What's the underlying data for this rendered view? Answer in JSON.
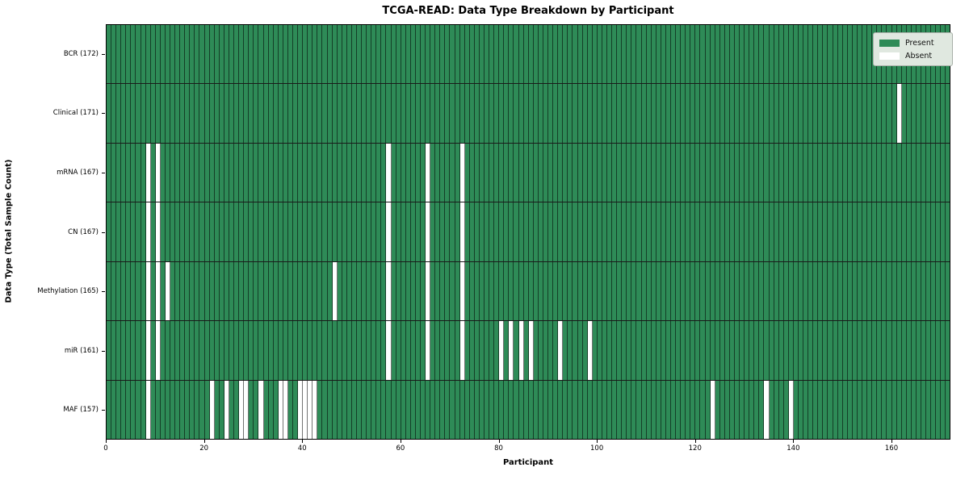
{
  "title": "TCGA-READ: Data Type Breakdown by Participant",
  "xlabel": "Participant",
  "ylabel": "Data Type (Total Sample Count)",
  "legend": [
    {
      "label": "Present",
      "color": "#2e8b57"
    },
    {
      "label": "Absent",
      "color": "#ffffff"
    }
  ],
  "colors": {
    "present": "#2e8b57",
    "absent": "#ffffff",
    "cell_gridline": "rgba(0,0,0,0.55)",
    "row_separator": "#1a1a1a",
    "spine": "#000000"
  },
  "chart_data": {
    "type": "heatmap",
    "title": "TCGA-READ: Data Type Breakdown by Participant",
    "xlabel": "Participant",
    "ylabel": "Data Type (Total Sample Count)",
    "n_participants": 172,
    "x_ticks": [
      0,
      20,
      40,
      60,
      80,
      100,
      120,
      140,
      160
    ],
    "xlim": [
      0,
      172
    ],
    "grid": true,
    "legend_position": "upper right",
    "value_legend": {
      "present": 1,
      "absent": 0
    },
    "rows": [
      {
        "label": "BCR (172)",
        "data_type": "BCR",
        "total_sample_count": 172,
        "absent_participants": []
      },
      {
        "label": "Clinical (171)",
        "data_type": "Clinical",
        "total_sample_count": 171,
        "absent_participants": [
          161
        ]
      },
      {
        "label": "mRNA (167)",
        "data_type": "mRNA",
        "total_sample_count": 167,
        "absent_participants": [
          8,
          10,
          57,
          65,
          72
        ]
      },
      {
        "label": "CN (167)",
        "data_type": "CN",
        "total_sample_count": 167,
        "absent_participants": [
          8,
          10,
          57,
          65,
          72
        ]
      },
      {
        "label": "Methylation (165)",
        "data_type": "Methylation",
        "total_sample_count": 165,
        "absent_participants": [
          8,
          10,
          12,
          46,
          57,
          65,
          72
        ]
      },
      {
        "label": "miR (161)",
        "data_type": "miR",
        "total_sample_count": 161,
        "absent_participants": [
          8,
          10,
          57,
          65,
          72,
          80,
          82,
          84,
          86,
          92,
          98
        ]
      },
      {
        "label": "MAF (157)",
        "data_type": "MAF",
        "total_sample_count": 157,
        "absent_participants": [
          8,
          21,
          24,
          27,
          28,
          31,
          35,
          36,
          39,
          40,
          41,
          42,
          123,
          134,
          139
        ]
      }
    ]
  }
}
